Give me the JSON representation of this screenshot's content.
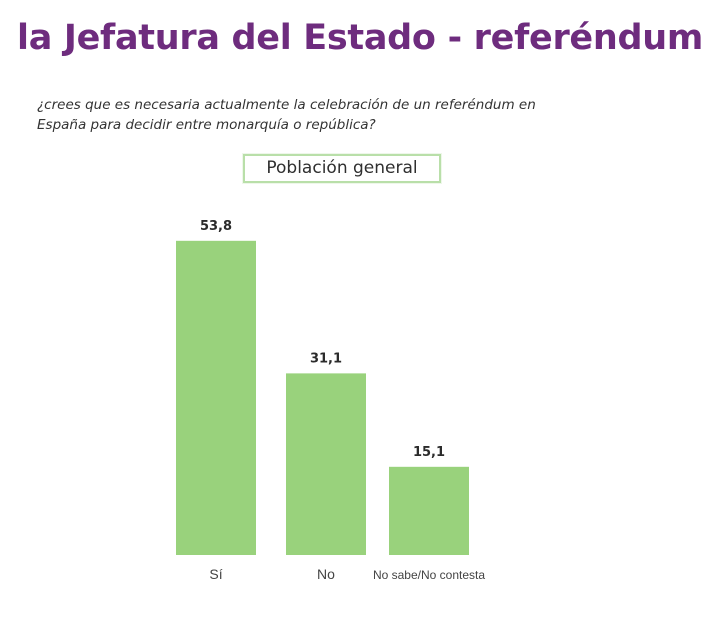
{
  "header": {
    "title": "la Jefatura del Estado - referéndum",
    "question_line1": "¿crees que es necesaria actualmente la celebración de un referéndum en",
    "question_line2": "España para decidir entre monarquía o república?",
    "population_label": "Población general"
  },
  "chart_data": {
    "type": "bar",
    "title": "Población general",
    "xlabel": "",
    "ylabel": "",
    "categories": [
      "Sí",
      "No",
      "No sabe/No contesta"
    ],
    "values": [
      53.8,
      31.1,
      15.1
    ],
    "value_labels": [
      "53,8",
      "31,1",
      "15,1"
    ],
    "ylim": [
      0,
      60
    ],
    "bar_color": "#99d27c",
    "grid": false,
    "legend": "none"
  },
  "colors": {
    "title": "#6e2c7e",
    "bar": "#99d27c",
    "box_border": "#b9dfa9"
  }
}
